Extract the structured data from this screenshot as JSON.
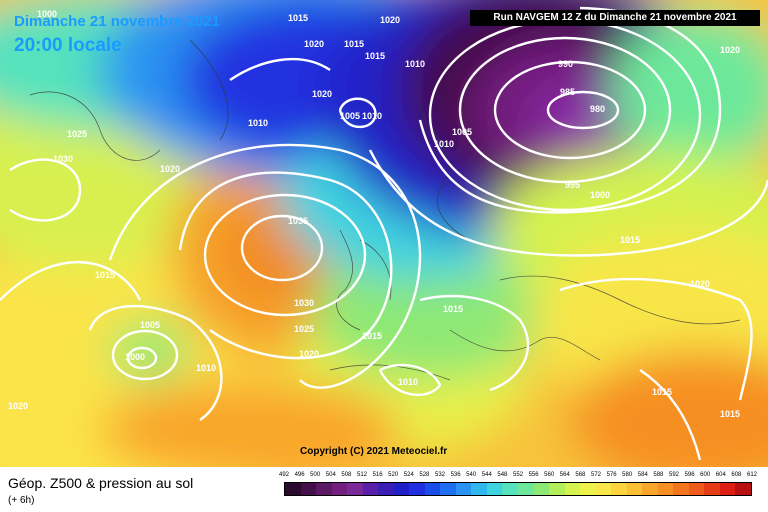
{
  "header": {
    "date_line": "Dimanche 21 novembre 2021",
    "time_line": "20:00 locale",
    "run_banner": "Run NAVGEM 12 Z du Dimanche 21 novembre 2021"
  },
  "copyright": "Copyright (C) 2021 Meteociel.fr",
  "footer": {
    "title": "Géop. Z500 & pression au sol",
    "subtitle": "(+ 6h)"
  },
  "scale": {
    "ticks": [
      "492",
      "496",
      "500",
      "504",
      "508",
      "512",
      "516",
      "520",
      "524",
      "528",
      "532",
      "536",
      "540",
      "544",
      "548",
      "552",
      "556",
      "560",
      "564",
      "568",
      "572",
      "576",
      "580",
      "584",
      "588",
      "592",
      "596",
      "600",
      "604",
      "608",
      "612"
    ],
    "colors": [
      "#2a0a2e",
      "#43104a",
      "#5c1a66",
      "#741f80",
      "#7a2a96",
      "#5a1fa8",
      "#3b1fb5",
      "#2020c8",
      "#2030e0",
      "#1b4de8",
      "#1e6ef0",
      "#2a93f2",
      "#30b8ee",
      "#3fd3e0",
      "#55e2bd",
      "#6de89a",
      "#8ee874",
      "#b2ee5a",
      "#d4f250",
      "#ecf24a",
      "#f8e64a",
      "#fbd43e",
      "#fbc034",
      "#f9a62c",
      "#f68f24",
      "#f3761e",
      "#ee5b1a",
      "#e63c16",
      "#dd1e14",
      "#b80f10"
    ]
  },
  "pressure_labels": [
    {
      "text": "1000"
    },
    {
      "text": "1015"
    },
    {
      "text": "1020"
    },
    {
      "text": "1015"
    },
    {
      "text": "1020"
    },
    {
      "text": "1020"
    },
    {
      "text": "1015"
    },
    {
      "text": "1010"
    },
    {
      "text": "1020"
    },
    {
      "text": "1010"
    },
    {
      "text": "1005"
    },
    {
      "text": "1010"
    },
    {
      "text": "1005"
    },
    {
      "text": "1010"
    },
    {
      "text": "990"
    },
    {
      "text": "985"
    },
    {
      "text": "980"
    },
    {
      "text": "995"
    },
    {
      "text": "1000"
    },
    {
      "text": "1025"
    },
    {
      "text": "1030"
    },
    {
      "text": "1020"
    },
    {
      "text": "1035"
    },
    {
      "text": "1015"
    },
    {
      "text": "1030"
    },
    {
      "text": "1025"
    },
    {
      "text": "1020"
    },
    {
      "text": "1005"
    },
    {
      "text": "1000"
    },
    {
      "text": "1010"
    },
    {
      "text": "1015"
    },
    {
      "text": "1015"
    },
    {
      "text": "1010"
    },
    {
      "text": "1015"
    },
    {
      "text": "1020"
    },
    {
      "text": "1015"
    },
    {
      "text": "1015"
    },
    {
      "text": "1020"
    }
  ]
}
